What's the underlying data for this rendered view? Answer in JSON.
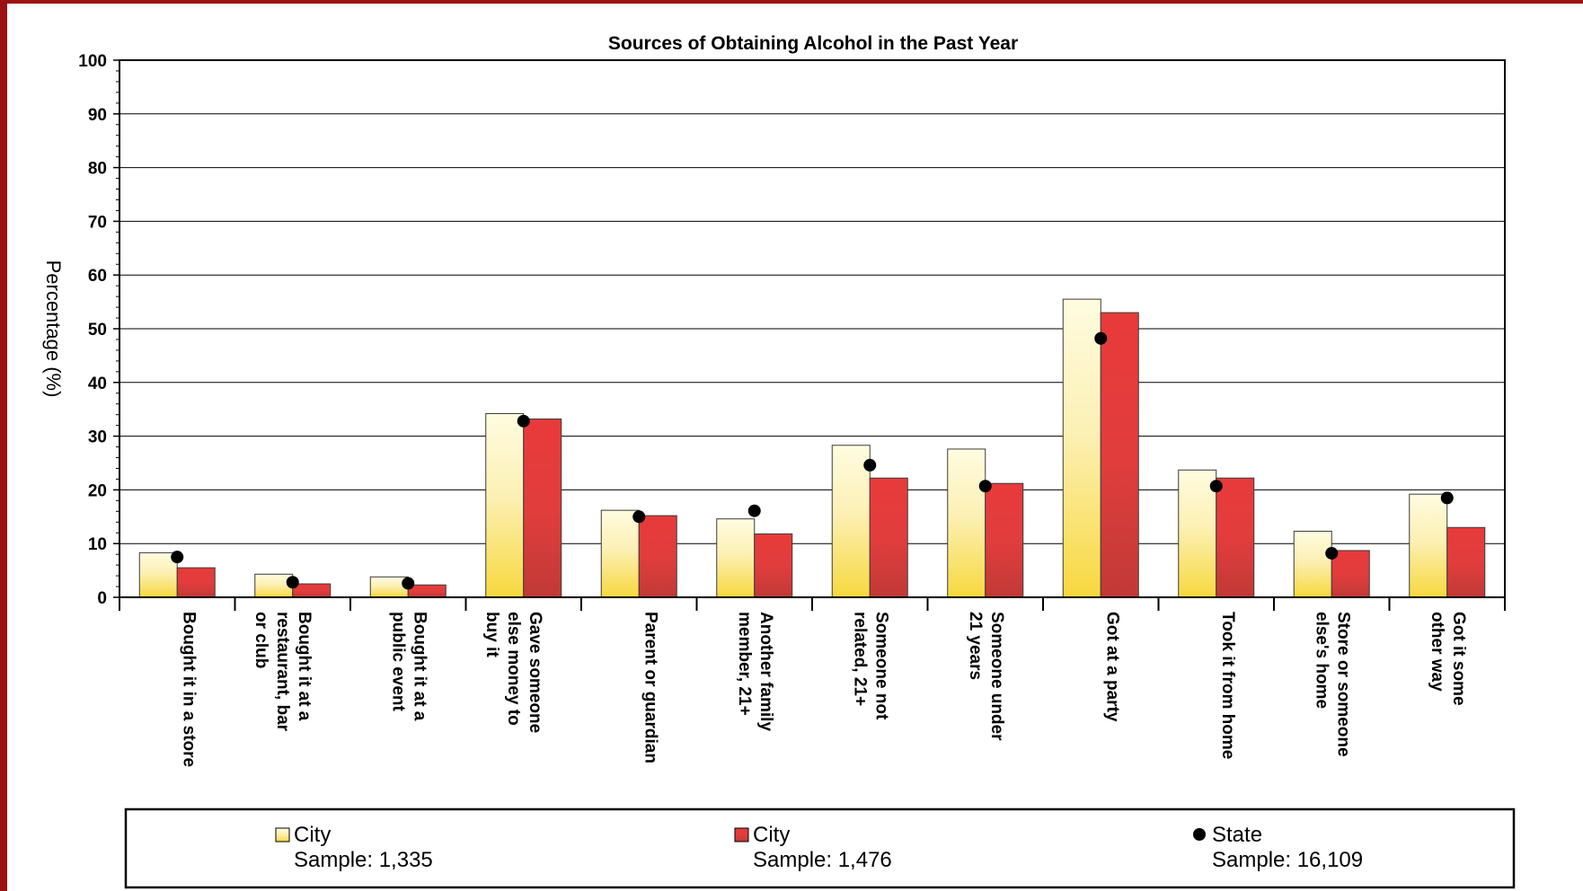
{
  "chart_data": {
    "type": "bar",
    "title": "Sources of Obtaining Alcohol in the Past Year",
    "ylabel": "Percentage (%)",
    "ylim": [
      0,
      100
    ],
    "yticks": [
      0,
      10,
      20,
      30,
      40,
      50,
      60,
      70,
      80,
      90,
      100
    ],
    "grid": true,
    "legend_position": "bottom",
    "categories": [
      [
        "Bought it in a store"
      ],
      [
        "Bought it at a",
        "restaurant, bar",
        "or club"
      ],
      [
        "Bought it at a",
        "public event"
      ],
      [
        "Gave someone",
        "else money to",
        "buy it"
      ],
      [
        "Parent or guardian"
      ],
      [
        "Another family",
        "member, 21+"
      ],
      [
        "Someone not",
        "related, 21+"
      ],
      [
        "Someone under",
        "21 years"
      ],
      [
        "Got at a party"
      ],
      [
        "Took it from home"
      ],
      [
        "Store or someone",
        "else's home"
      ],
      [
        "Got it some",
        "other way"
      ]
    ],
    "series": [
      {
        "name": "City",
        "sample": "Sample: 1,335",
        "kind": "bar",
        "colors": {
          "top": "#fffce0",
          "bottom": "#f7d83e"
        },
        "values": [
          8.3,
          4.3,
          3.8,
          34.2,
          16.2,
          14.6,
          28.3,
          27.6,
          55.5,
          23.7,
          12.3,
          19.2
        ]
      },
      {
        "name": "City",
        "sample": "Sample: 1,476",
        "kind": "bar",
        "colors": {
          "top": "#e83a3a",
          "bottom": "#c03a36"
        },
        "values": [
          5.5,
          2.5,
          2.3,
          33.2,
          15.2,
          11.8,
          22.2,
          21.2,
          53.0,
          22.2,
          8.7,
          13.0
        ]
      },
      {
        "name": "State",
        "sample": "Sample: 16,109",
        "kind": "marker",
        "colors": {
          "fill": "#000000"
        },
        "values": [
          7.5,
          2.8,
          2.6,
          32.8,
          15.0,
          16.1,
          24.6,
          20.7,
          48.2,
          20.7,
          8.2,
          18.5
        ]
      }
    ]
  }
}
